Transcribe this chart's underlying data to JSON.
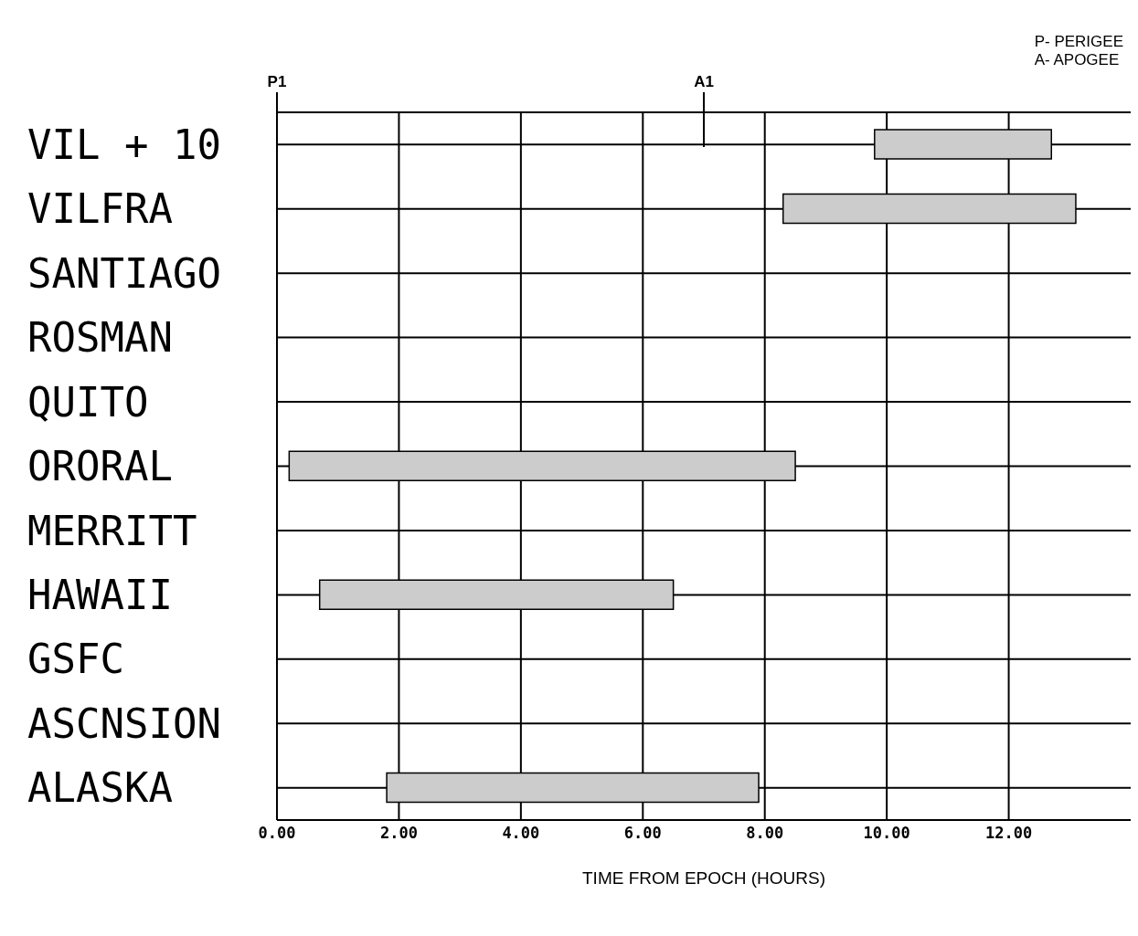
{
  "chart_data": {
    "type": "bar",
    "orientation": "horizontal",
    "xlabel": "TIME FROM EPOCH (HOURS)",
    "categories": [
      "VIL + 10",
      "VILFRA",
      "SANTIAGO",
      "ROSMAN",
      "QUITO",
      "ORORAL",
      "MERRITT",
      "HAWAII",
      "GSFC",
      "ASCNSION",
      "ALASKA"
    ],
    "base": [
      9.8,
      8.3,
      null,
      null,
      null,
      0.2,
      null,
      0.7,
      null,
      null,
      1.8
    ],
    "values": [
      2.9,
      4.8,
      null,
      null,
      null,
      8.3,
      null,
      5.8,
      null,
      null,
      6.1
    ],
    "color": "#cccccc",
    "xlim": [
      0,
      14
    ],
    "xticks": [
      {
        "value": 0,
        "label": "0.00"
      },
      {
        "value": 2,
        "label": "2.00"
      },
      {
        "value": 4,
        "label": "4.00"
      },
      {
        "value": 6,
        "label": "6.00"
      },
      {
        "value": 8,
        "label": "8.00"
      },
      {
        "value": 10,
        "label": "10.00"
      },
      {
        "value": 12,
        "label": "12.00"
      }
    ],
    "ref_lines": [
      {
        "axis": "x",
        "value": 0,
        "label": "P1"
      },
      {
        "axis": "x",
        "value": 7,
        "label": "A1"
      }
    ],
    "annotations": [
      "P- PERIGEE",
      "A- APOGEE"
    ],
    "grid": true,
    "legend": false
  }
}
